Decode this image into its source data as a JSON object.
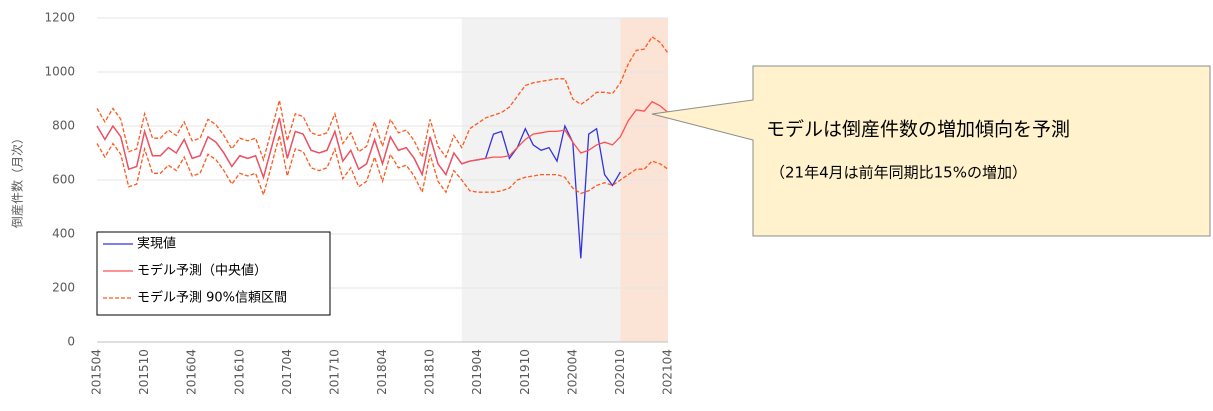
{
  "chart_data": {
    "type": "line",
    "y_label": "倒産件数（月次）",
    "categories": [
      "201504",
      null,
      null,
      null,
      null,
      null,
      "201510",
      null,
      null,
      null,
      null,
      null,
      "201604",
      null,
      null,
      null,
      null,
      null,
      "201610",
      null,
      null,
      null,
      null,
      null,
      "201704",
      null,
      null,
      null,
      null,
      null,
      "201710",
      null,
      null,
      null,
      null,
      null,
      "201804",
      null,
      null,
      null,
      null,
      null,
      "201810",
      null,
      null,
      null,
      null,
      null,
      "201904",
      null,
      null,
      null,
      null,
      null,
      "201910",
      null,
      null,
      null,
      null,
      null,
      "202004",
      null,
      null,
      null,
      null,
      null,
      "202010",
      null,
      null,
      null,
      null,
      null,
      "202104"
    ],
    "ylim": [
      0,
      1200
    ],
    "yticks": [
      0,
      200,
      400,
      600,
      800,
      1000,
      1200
    ],
    "grid": true,
    "regions": [
      {
        "start": 46,
        "end": 66,
        "color": "#f2f2f2"
      },
      {
        "start": 66,
        "end": 72,
        "color": "#fbe3d6"
      }
    ],
    "series": [
      {
        "name": "実現値",
        "color": "#3333dd",
        "values": [
          800,
          750,
          800,
          760,
          640,
          650,
          780,
          690,
          690,
          720,
          700,
          750,
          680,
          690,
          760,
          740,
          700,
          650,
          690,
          680,
          690,
          610,
          720,
          830,
          680,
          780,
          770,
          710,
          700,
          710,
          780,
          670,
          710,
          640,
          660,
          750,
          660,
          760,
          710,
          720,
          680,
          620,
          760,
          660,
          620,
          700,
          660,
          670,
          675,
          680,
          770,
          780,
          680,
          720,
          790,
          730,
          710,
          720,
          670,
          800,
          740,
          310,
          770,
          790,
          620,
          580,
          630,
          null,
          null,
          null,
          null,
          null,
          null
        ]
      },
      {
        "name": "モデル予測（中央値）",
        "color": "#ff5050",
        "values": [
          800,
          750,
          800,
          760,
          640,
          650,
          780,
          690,
          690,
          720,
          700,
          750,
          680,
          690,
          760,
          740,
          700,
          650,
          690,
          680,
          690,
          610,
          720,
          830,
          680,
          780,
          770,
          710,
          700,
          710,
          780,
          670,
          710,
          640,
          660,
          750,
          660,
          760,
          710,
          720,
          680,
          620,
          760,
          660,
          620,
          700,
          660,
          670,
          675,
          680,
          685,
          685,
          690,
          720,
          750,
          770,
          775,
          780,
          780,
          785,
          740,
          700,
          710,
          730,
          740,
          730,
          760,
          820,
          860,
          855,
          890,
          875,
          850
        ]
      },
      {
        "name": "モデル予測 90%信頼区間",
        "color": "#ff5a1e",
        "dashed": true,
        "values": [
          865,
          815,
          865,
          825,
          705,
          715,
          845,
          755,
          755,
          785,
          765,
          815,
          745,
          755,
          825,
          805,
          765,
          715,
          755,
          745,
          755,
          675,
          785,
          895,
          745,
          845,
          835,
          775,
          765,
          775,
          845,
          735,
          775,
          705,
          725,
          815,
          725,
          825,
          775,
          785,
          745,
          685,
          825,
          725,
          685,
          765,
          720,
          790,
          810,
          830,
          840,
          850,
          870,
          910,
          950,
          960,
          965,
          970,
          975,
          975,
          900,
          880,
          900,
          925,
          925,
          920,
          960,
          1030,
          1080,
          1085,
          1130,
          1110,
          1070
        ],
        "lower": [
          735,
          685,
          735,
          695,
          575,
          585,
          715,
          625,
          625,
          655,
          635,
          685,
          615,
          625,
          695,
          675,
          635,
          585,
          625,
          615,
          625,
          545,
          655,
          765,
          615,
          715,
          705,
          645,
          635,
          645,
          715,
          605,
          645,
          575,
          595,
          685,
          595,
          695,
          645,
          655,
          615,
          555,
          695,
          595,
          555,
          635,
          600,
          560,
          555,
          555,
          555,
          560,
          570,
          600,
          610,
          615,
          620,
          620,
          620,
          610,
          570,
          550,
          560,
          580,
          590,
          580,
          600,
          620,
          640,
          640,
          670,
          660,
          640
        ]
      }
    ],
    "annotation": {
      "title": "モデルは倒産件数の増加傾向を予測",
      "text": "（21年4月は前年同期比15%の増加）"
    }
  }
}
